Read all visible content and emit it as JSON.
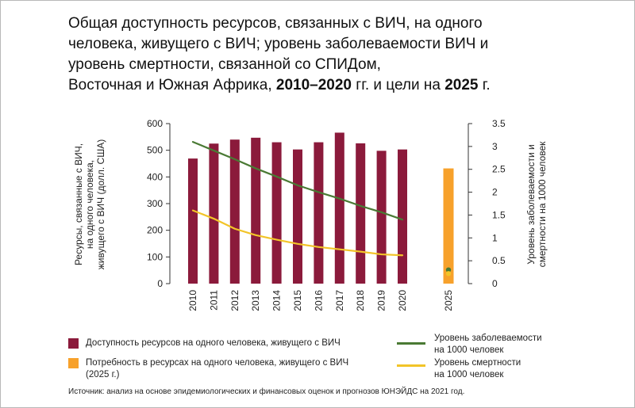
{
  "title": {
    "line1": "Общая доступность ресурсов, связанных с ВИЧ, на одного",
    "line2": "человека, живущего с ВИЧ; уровень заболеваемости ВИЧ и",
    "line3": "уровень смертности, связанной со СПИДом,",
    "line4_pre": "Восточная и Южная Африка, ",
    "line4_bold1": "2010–2020",
    "line4_mid": " гг. и цели на ",
    "line4_bold2": "2025",
    "line4_post": " г."
  },
  "legend": {
    "resources": "Доступность ресурсов на одного человека, живущего с ВИЧ",
    "need_line1": "Потребность в ресурсах на одного человека, живущего с ВИЧ",
    "need_line2": "(2025 г.)",
    "incidence_line1": "Уровень заболеваемости",
    "incidence_line2": "на 1000 человек",
    "mortality_line1": "Уровень смертности",
    "mortality_line2": "на 1000 человек"
  },
  "source": "Источник: анализ на основе эпидемиологических и финансовых оценок и прогнозов ЮНЭЙДС на 2021 год.",
  "colors": {
    "bar": "#8b1a3b",
    "target_bar": "#f7a12b",
    "incidence": "#4a7a34",
    "mortality": "#f2c428",
    "axis": "#333333",
    "text": "#222222"
  },
  "chart_data": {
    "type": "bar",
    "categories": [
      "2010",
      "2011",
      "2012",
      "2013",
      "2014",
      "2015",
      "2016",
      "2017",
      "2018",
      "2019",
      "2020",
      "2025"
    ],
    "ylabel": "Ресурсы, связанные с ВИЧ, на одного человека, живущего с ВИЧ (долл. США)",
    "y2label": "Уровень заболеваемости и смертности на 1000 человек",
    "ylim": [
      0,
      600
    ],
    "y2lim": [
      0,
      3.5
    ],
    "yticks": [
      "0",
      "100",
      "200",
      "300",
      "400",
      "500",
      "600"
    ],
    "y2ticks": [
      "0",
      "0.5",
      "1",
      "1.5",
      "2",
      "2.5",
      "3",
      "3.5"
    ],
    "series": [
      {
        "name": "Доступность ресурсов на одного человека, живущего с ВИЧ",
        "type": "bar",
        "axis": "left",
        "x": [
          "2010",
          "2011",
          "2012",
          "2013",
          "2014",
          "2015",
          "2016",
          "2017",
          "2018",
          "2019",
          "2020"
        ],
        "values": [
          469,
          525,
          540,
          547,
          530,
          503,
          530,
          566,
          526,
          498,
          503
        ]
      },
      {
        "name": "Потребность в ресурсах на одного человека, живущего с ВИЧ (2025 г.)",
        "type": "bar",
        "axis": "left",
        "x": [
          "2025"
        ],
        "values": [
          432
        ]
      },
      {
        "name": "Уровень заболеваемости на 1000 человек",
        "type": "line",
        "axis": "right",
        "x": [
          "2010",
          "2011",
          "2012",
          "2013",
          "2014",
          "2015",
          "2016",
          "2017",
          "2018",
          "2019",
          "2020",
          "2025"
        ],
        "values": [
          3.1,
          2.91,
          2.72,
          2.52,
          2.34,
          2.15,
          2.0,
          1.86,
          1.7,
          1.56,
          1.4,
          0.3
        ]
      },
      {
        "name": "Уровень смертности на 1000 человек",
        "type": "line",
        "axis": "right",
        "x": [
          "2010",
          "2011",
          "2012",
          "2013",
          "2014",
          "2015",
          "2016",
          "2017",
          "2018",
          "2019",
          "2020",
          "2025"
        ],
        "values": [
          1.6,
          1.42,
          1.2,
          1.06,
          0.96,
          0.87,
          0.8,
          0.75,
          0.7,
          0.64,
          0.62,
          0.22
        ]
      }
    ]
  }
}
